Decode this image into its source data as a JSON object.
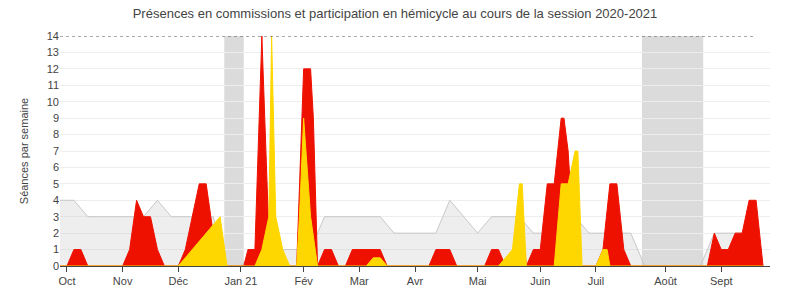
{
  "chart_data": {
    "type": "area",
    "title": "Présences en commissions et participation en hémicycle au cours de la session 2020-2021",
    "ylabel": "Séances par semaine",
    "xlim": [
      0,
      51
    ],
    "xticks": [
      {
        "value": 0.5,
        "label": "Oct"
      },
      {
        "value": 4.5,
        "label": "Nov"
      },
      {
        "value": 8.5,
        "label": "Déc"
      },
      {
        "value": 13.0,
        "label": "Jan 21"
      },
      {
        "value": 17.5,
        "label": "Fév"
      },
      {
        "value": 21.5,
        "label": "Mar"
      },
      {
        "value": 25.5,
        "label": "Avr"
      },
      {
        "value": 30.0,
        "label": "Mai"
      },
      {
        "value": 34.5,
        "label": "Juin"
      },
      {
        "value": 38.5,
        "label": "Juil"
      },
      {
        "value": 43.5,
        "label": "Août"
      },
      {
        "value": 47.5,
        "label": "Sept"
      }
    ],
    "ylim": [
      0,
      14
    ],
    "yticks": [
      0,
      1,
      2,
      3,
      4,
      5,
      6,
      7,
      8,
      9,
      10,
      11,
      12,
      13,
      14
    ],
    "grid": true,
    "shaded_regions": [
      {
        "x": [
          11.8,
          13.2
        ],
        "color": "#999999"
      },
      {
        "x": [
          41.8,
          46.2
        ],
        "color": "#999999"
      }
    ],
    "series": [
      {
        "type": "area",
        "color": "#C8C8C8",
        "x": [
          0,
          1,
          2,
          3,
          4,
          5,
          6,
          7,
          8,
          9,
          10,
          11,
          12,
          13,
          14,
          15,
          16,
          17,
          18,
          19,
          20,
          21,
          22,
          23,
          24,
          25,
          26,
          27,
          28,
          29,
          30,
          31,
          32,
          33,
          34,
          35,
          36,
          37,
          38,
          39,
          40,
          41,
          42,
          43,
          44,
          45,
          46,
          47,
          48,
          49,
          50
        ],
        "values": [
          4,
          4,
          3,
          3,
          3,
          3,
          3,
          4,
          3,
          3,
          3,
          3,
          0,
          0,
          1,
          2,
          1,
          1,
          1,
          3,
          3,
          3,
          3,
          3,
          2,
          2,
          2,
          2,
          4,
          3,
          2,
          3,
          3,
          3,
          2,
          2,
          3,
          3,
          2,
          2,
          2,
          2,
          0,
          0,
          0,
          0,
          0,
          2,
          2,
          2,
          2
        ]
      },
      {
        "type": "area",
        "color": "#EE1100",
        "x": [
          0,
          0.5,
          1,
          1.5,
          2,
          2.5,
          3,
          3.5,
          4,
          4.5,
          5,
          5.5,
          6,
          6.5,
          7,
          7.5,
          8,
          8.5,
          9,
          9.5,
          10,
          10.5,
          11,
          11.5,
          12,
          12.5,
          13,
          13.2,
          13.5,
          14,
          14.5,
          15,
          15.5,
          16,
          16.5,
          17,
          17.5,
          18,
          18.2,
          18.5,
          19,
          19.5,
          20,
          20.5,
          21,
          21.5,
          22,
          22.5,
          23,
          23.5,
          24,
          24.5,
          25,
          25.5,
          26,
          26.5,
          27,
          27.5,
          28,
          28.5,
          29,
          29.5,
          30,
          30.5,
          31,
          31.5,
          32,
          32.5,
          33,
          33.5,
          34,
          34.5,
          35,
          35.5,
          36,
          36.2,
          36.5,
          37,
          37.5,
          38,
          38.5,
          39,
          39.5,
          40,
          40.5,
          41,
          41.5,
          42,
          42.5,
          43,
          43.5,
          44,
          44.5,
          45,
          45.5,
          46,
          46.5,
          47,
          47.5,
          48,
          48.5,
          49,
          49.5,
          50,
          50.5
        ],
        "values": [
          0,
          0,
          1,
          1,
          0,
          0,
          0,
          0,
          0,
          0,
          1,
          4,
          3,
          3,
          1,
          0,
          0,
          0,
          1,
          3,
          5,
          5,
          2,
          0,
          0,
          0,
          0,
          0,
          1,
          1,
          14,
          2,
          0,
          0,
          0,
          0,
          12,
          12,
          9,
          0,
          1,
          1,
          0,
          0,
          1,
          1,
          1,
          1,
          1,
          0,
          0,
          0,
          0,
          0,
          0,
          0,
          1,
          1,
          1,
          0,
          0,
          0,
          0,
          0,
          1,
          1,
          0,
          0,
          4,
          0,
          1,
          1,
          5,
          5,
          9,
          9,
          7,
          0,
          0,
          0,
          0,
          1,
          5,
          5,
          1,
          0,
          0,
          0,
          0,
          0,
          0,
          0,
          0,
          0,
          0,
          0,
          0,
          2,
          1,
          1,
          2,
          2,
          4,
          4,
          0
        ]
      },
      {
        "type": "area",
        "color": "#FFD700",
        "x": [
          0,
          0.5,
          1,
          1.5,
          2,
          2.5,
          3,
          3.5,
          4,
          4.5,
          5,
          5.5,
          6,
          6.5,
          7,
          7.5,
          8,
          8.5,
          9,
          9.5,
          10,
          10.5,
          11,
          11.5,
          12,
          12.5,
          13,
          13.5,
          14,
          14.5,
          15,
          15.2,
          15.5,
          16,
          16.5,
          17,
          17.2,
          17.5,
          18,
          18.5,
          19,
          19.5,
          20,
          20.5,
          21,
          21.5,
          22,
          22.5,
          23,
          23.5,
          24,
          24.5,
          25,
          25.5,
          26,
          26.5,
          27,
          27.5,
          28,
          28.5,
          29,
          29.5,
          30,
          30.5,
          31,
          31.5,
          32,
          32.5,
          33,
          33.2,
          33.5,
          34,
          34.5,
          35,
          35.2,
          35.5,
          36,
          36.5,
          37,
          37.2,
          37.5,
          38,
          38.5,
          39,
          39.3,
          39.5,
          40,
          40.5,
          41,
          41.5,
          42,
          42.5,
          43,
          43.5,
          44,
          44.5,
          45,
          45.5,
          46,
          46.5,
          47,
          47.5,
          48,
          48.5,
          49,
          49.3,
          49.5,
          50,
          50.5
        ],
        "values": [
          0,
          0,
          0,
          0,
          0,
          0,
          0,
          0,
          0,
          0,
          0,
          0,
          0,
          0,
          0,
          0,
          0,
          0,
          0.5,
          1,
          1.5,
          2,
          2.5,
          3,
          0,
          0,
          0,
          0,
          0,
          1,
          3,
          14,
          3,
          1,
          0,
          0,
          3,
          9,
          3,
          0,
          0,
          0,
          0,
          0,
          0,
          0,
          0,
          0.5,
          0.5,
          0,
          0,
          0,
          0,
          0,
          0,
          0,
          0,
          0,
          0,
          0,
          0,
          0,
          0,
          0,
          0,
          0,
          0.5,
          1,
          5,
          5,
          0,
          0,
          0,
          0,
          0,
          0,
          5,
          5,
          7,
          7,
          0,
          0,
          0,
          1,
          1,
          0,
          0,
          0,
          0,
          0,
          0,
          0,
          0,
          0,
          0,
          0,
          0,
          0,
          0,
          0,
          0,
          0,
          0,
          0,
          0,
          0,
          0,
          0,
          0
        ]
      },
      {
        "type": "line",
        "color": "#555555",
        "line_style": "dotted",
        "x": [
          0,
          50
        ],
        "values": [
          14,
          14
        ]
      }
    ]
  }
}
